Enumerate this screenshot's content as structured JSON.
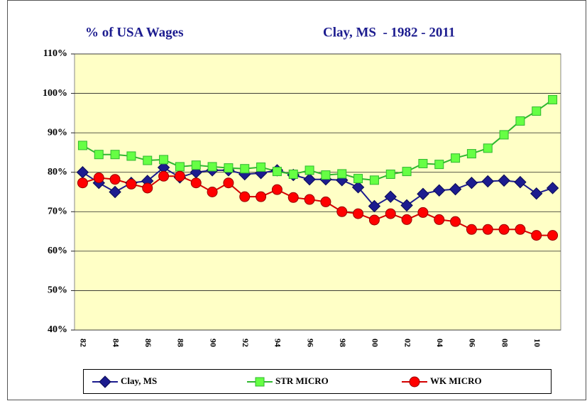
{
  "chart_data": {
    "type": "line",
    "title": "% of USA Wages",
    "subtitle": "Clay, MS  - 1982 - 2011",
    "categories": [
      "82",
      null,
      "84",
      null,
      "86",
      null,
      "88",
      null,
      "90",
      null,
      "92",
      null,
      "94",
      null,
      "96",
      null,
      "98",
      null,
      "00",
      null,
      "02",
      null,
      "04",
      null,
      "06",
      null,
      "08",
      null,
      "10",
      null
    ],
    "ylim": [
      40,
      110
    ],
    "yticks": [
      {
        "value": 40,
        "label": "40%"
      },
      {
        "value": 50,
        "label": "50%"
      },
      {
        "value": 60,
        "label": "60%"
      },
      {
        "value": 70,
        "label": "70%"
      },
      {
        "value": 80,
        "label": "80%"
      },
      {
        "value": 90,
        "label": "90%"
      },
      {
        "value": 100,
        "label": "100%"
      },
      {
        "value": 110,
        "label": "110%"
      }
    ],
    "grid": true,
    "legend": "bottom",
    "series": [
      {
        "name": "Clay, MS",
        "color": "#1c1c8f",
        "marker": "diamond",
        "values": [
          80,
          77.3,
          75,
          77.3,
          77.8,
          81.2,
          78.7,
          80,
          80.5,
          80.5,
          79.5,
          79.8,
          80.5,
          79.3,
          78.2,
          78.2,
          78,
          76.2,
          71.4,
          73.8,
          71.6,
          74.5,
          75.4,
          75.7,
          77.3,
          77.7,
          77.9,
          77.5,
          74.6,
          76
        ]
      },
      {
        "name": "STR MICRO",
        "color": "#2fb82f",
        "marker": "square",
        "values": [
          86.8,
          84.5,
          84.5,
          84.1,
          83,
          83.2,
          81.4,
          81.8,
          81.4,
          81.1,
          80.9,
          81.3,
          80.2,
          79.5,
          80.5,
          79.3,
          79.6,
          78.4,
          78,
          79.5,
          80.2,
          82.2,
          82,
          83.6,
          84.7,
          86.1,
          89.5,
          93,
          95.5,
          98.4
        ]
      },
      {
        "name": "WK MICRO",
        "color": "#d40000",
        "marker": "circle",
        "values": [
          77.3,
          78.6,
          78.2,
          77,
          76,
          79,
          79,
          77.3,
          75,
          77.3,
          73.8,
          73.8,
          75.6,
          73.6,
          73.1,
          72.5,
          70,
          69.5,
          67.9,
          69.5,
          68,
          69.8,
          68,
          67.5,
          65.5,
          65.5,
          65.5,
          65.5,
          64,
          64
        ]
      }
    ]
  }
}
